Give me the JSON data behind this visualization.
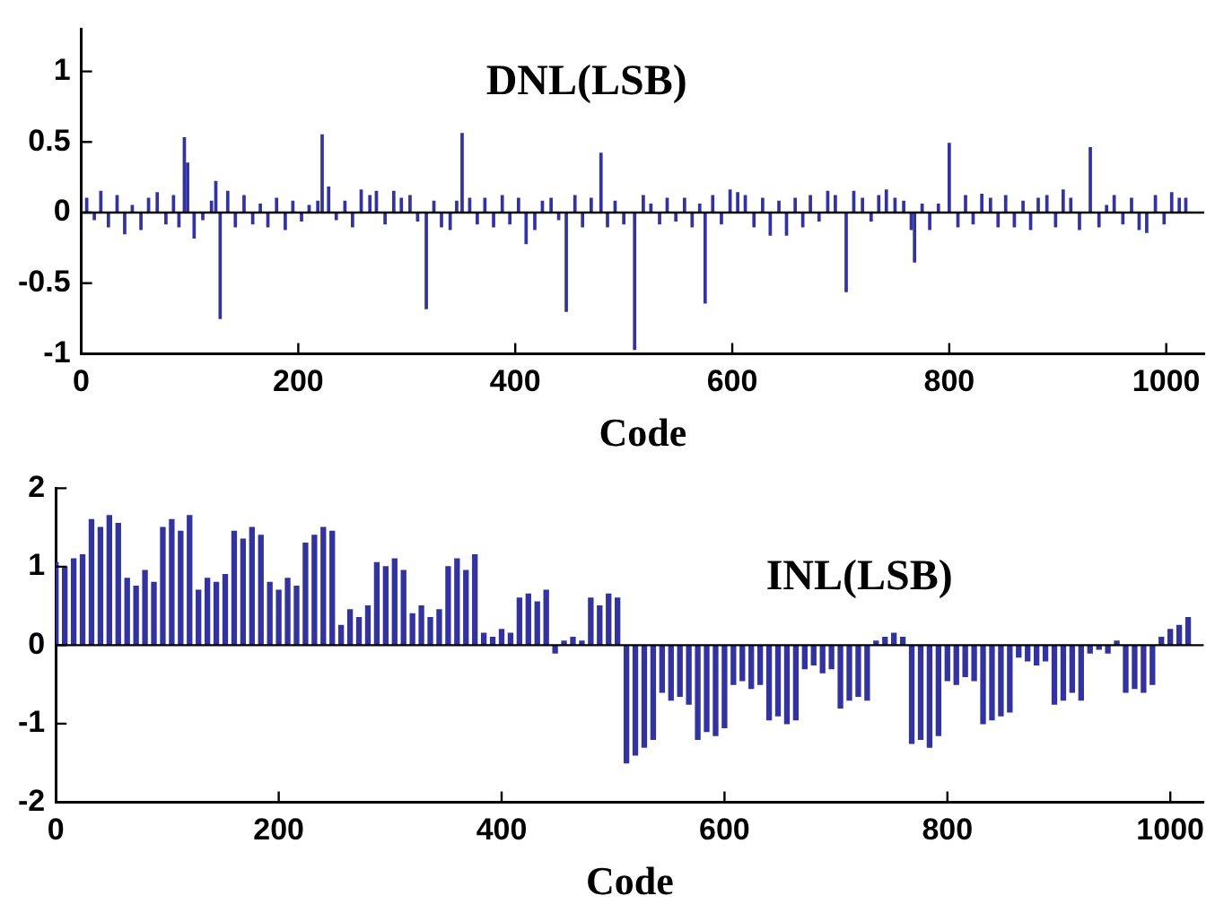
{
  "chart_data": [
    {
      "type": "bar",
      "title": "DNL(LSB)",
      "xlabel": "Code",
      "color": "#3333a0",
      "xlim": [
        0,
        1035
      ],
      "xticks": [
        0,
        200,
        400,
        600,
        800,
        1000
      ],
      "ylim": [
        -1,
        1.3
      ],
      "yticks": [
        -1,
        -0.5,
        0,
        0.5,
        1
      ],
      "x": [
        5,
        12,
        18,
        25,
        33,
        40,
        47,
        55,
        62,
        70,
        78,
        85,
        90,
        95,
        98,
        104,
        112,
        120,
        124,
        128,
        135,
        142,
        150,
        158,
        165,
        172,
        180,
        188,
        195,
        203,
        210,
        218,
        222,
        228,
        235,
        243,
        250,
        258,
        266,
        272,
        280,
        288,
        295,
        303,
        310,
        318,
        325,
        332,
        340,
        346,
        351,
        358,
        365,
        372,
        380,
        388,
        395,
        403,
        410,
        418,
        425,
        433,
        440,
        447,
        455,
        462,
        470,
        479,
        485,
        492,
        500,
        510,
        518,
        525,
        533,
        540,
        548,
        556,
        563,
        570,
        575,
        582,
        590,
        598,
        605,
        612,
        620,
        628,
        635,
        643,
        650,
        658,
        665,
        672,
        680,
        688,
        695,
        705,
        712,
        720,
        728,
        735,
        742,
        750,
        758,
        765,
        768,
        775,
        782,
        790,
        800,
        808,
        815,
        822,
        830,
        838,
        845,
        852,
        860,
        868,
        875,
        882,
        890,
        898,
        905,
        912,
        920,
        930,
        938,
        945,
        952,
        960,
        968,
        975,
        982,
        990,
        998,
        1005,
        1012,
        1018
      ],
      "values": [
        0.1,
        -0.05,
        0.15,
        -0.1,
        0.12,
        -0.15,
        0.05,
        -0.12,
        0.1,
        0.14,
        -0.08,
        0.12,
        -0.1,
        0.53,
        0.35,
        -0.18,
        -0.05,
        0.08,
        0.22,
        -0.75,
        0.15,
        -0.1,
        0.12,
        -0.08,
        0.06,
        -0.1,
        0.1,
        -0.12,
        0.08,
        -0.06,
        0.05,
        0.08,
        0.55,
        0.18,
        -0.05,
        0.08,
        -0.1,
        0.16,
        0.12,
        0.15,
        -0.08,
        0.15,
        0.1,
        0.12,
        -0.06,
        -0.68,
        0.08,
        -0.1,
        -0.12,
        0.08,
        0.56,
        0.1,
        -0.08,
        0.1,
        -0.1,
        0.12,
        -0.08,
        0.1,
        -0.22,
        -0.12,
        0.08,
        0.1,
        -0.05,
        -0.7,
        0.12,
        -0.1,
        0.1,
        0.42,
        -0.1,
        0.08,
        -0.08,
        -0.97,
        0.12,
        0.06,
        -0.08,
        0.1,
        -0.06,
        0.1,
        -0.1,
        0.06,
        -0.64,
        0.12,
        -0.08,
        0.16,
        0.14,
        0.12,
        -0.1,
        0.1,
        -0.16,
        0.08,
        -0.16,
        0.1,
        -0.1,
        0.12,
        -0.06,
        0.15,
        0.12,
        -0.56,
        0.15,
        0.1,
        -0.06,
        0.12,
        0.16,
        0.1,
        0.08,
        -0.12,
        -0.35,
        0.06,
        -0.12,
        0.06,
        0.49,
        -0.1,
        0.12,
        -0.08,
        0.13,
        0.1,
        -0.1,
        0.12,
        -0.1,
        0.08,
        -0.12,
        0.1,
        0.12,
        -0.1,
        0.16,
        0.1,
        -0.12,
        0.46,
        -0.1,
        0.05,
        0.12,
        -0.08,
        0.1,
        -0.12,
        -0.14,
        0.12,
        -0.08,
        0.14,
        0.1,
        0.1
      ]
    },
    {
      "type": "bar",
      "title": "INL(LSB)",
      "xlabel": "Code",
      "color": "#3333a0",
      "xlim": [
        0,
        1030
      ],
      "xticks": [
        0,
        200,
        400,
        600,
        800,
        1000
      ],
      "ylim": [
        -2,
        2
      ],
      "yticks": [
        -2,
        -1,
        0,
        1,
        2
      ],
      "x": [
        0,
        8,
        16,
        24,
        32,
        40,
        48,
        56,
        64,
        72,
        80,
        88,
        96,
        104,
        112,
        120,
        128,
        136,
        144,
        152,
        160,
        168,
        176,
        184,
        192,
        200,
        208,
        216,
        224,
        232,
        240,
        248,
        256,
        264,
        272,
        280,
        288,
        296,
        304,
        312,
        320,
        328,
        336,
        344,
        352,
        360,
        368,
        376,
        384,
        392,
        400,
        408,
        416,
        424,
        432,
        440,
        448,
        456,
        464,
        472,
        480,
        488,
        496,
        504,
        512,
        520,
        528,
        536,
        544,
        552,
        560,
        568,
        576,
        584,
        592,
        600,
        608,
        616,
        624,
        632,
        640,
        648,
        656,
        664,
        672,
        680,
        688,
        696,
        704,
        712,
        720,
        728,
        736,
        744,
        752,
        760,
        768,
        776,
        784,
        792,
        800,
        808,
        816,
        824,
        832,
        840,
        848,
        856,
        864,
        872,
        880,
        888,
        896,
        904,
        912,
        920,
        928,
        936,
        944,
        952,
        960,
        968,
        976,
        984,
        992,
        1000,
        1008,
        1016
      ],
      "values": [
        1.05,
        1.0,
        1.1,
        1.15,
        1.6,
        1.5,
        1.65,
        1.55,
        0.85,
        0.75,
        0.95,
        0.8,
        1.5,
        1.6,
        1.45,
        1.65,
        0.7,
        0.85,
        0.8,
        0.9,
        1.45,
        1.35,
        1.5,
        1.4,
        0.8,
        0.7,
        0.85,
        0.75,
        1.3,
        1.4,
        1.5,
        1.45,
        0.25,
        0.45,
        0.35,
        0.5,
        1.05,
        1.0,
        1.1,
        0.95,
        0.4,
        0.5,
        0.35,
        0.45,
        1.0,
        1.1,
        0.95,
        1.15,
        0.15,
        0.1,
        0.2,
        0.15,
        0.6,
        0.65,
        0.55,
        0.7,
        -0.1,
        0.05,
        0.1,
        0.05,
        0.6,
        0.5,
        0.65,
        0.6,
        -1.5,
        -1.4,
        -1.3,
        -1.2,
        -0.6,
        -0.7,
        -0.65,
        -0.75,
        -1.2,
        -1.1,
        -1.15,
        -1.05,
        -0.5,
        -0.45,
        -0.55,
        -0.5,
        -0.95,
        -0.9,
        -1.0,
        -0.95,
        -0.3,
        -0.25,
        -0.35,
        -0.3,
        -0.8,
        -0.7,
        -0.65,
        -0.7,
        0.05,
        0.1,
        0.15,
        0.1,
        -1.25,
        -1.2,
        -1.3,
        -1.15,
        -0.45,
        -0.5,
        -0.4,
        -0.45,
        -1.0,
        -0.95,
        -0.9,
        -0.85,
        -0.15,
        -0.2,
        -0.25,
        -0.2,
        -0.75,
        -0.7,
        -0.6,
        -0.7,
        -0.1,
        -0.05,
        -0.1,
        0.05,
        -0.6,
        -0.55,
        -0.6,
        -0.5,
        0.1,
        0.2,
        0.25,
        0.35
      ]
    }
  ]
}
